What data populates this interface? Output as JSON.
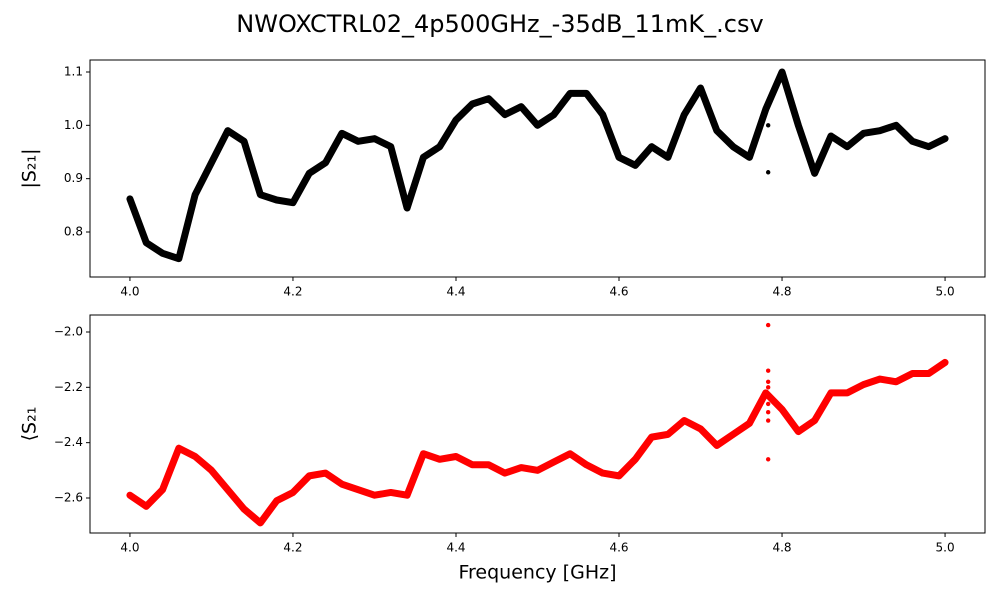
{
  "title": "NWOXCTRL02_4p500GHz_-35dB_11mK_.csv",
  "chart_data": [
    {
      "type": "scatter",
      "ylabel": "|S₂₁|",
      "xlim": [
        3.951,
        5.049
      ],
      "ylim": [
        0.7156,
        1.1225
      ],
      "xticks": [
        {
          "value": 4,
          "label": "4.0"
        },
        4.2,
        4.4,
        4.6,
        4.8,
        {
          "value": 5,
          "label": "5.0"
        }
      ],
      "yticks": [
        0.8,
        0.9,
        {
          "value": 1,
          "label": "1.0"
        },
        1.1
      ],
      "series": [
        {
          "color": "#000000",
          "mode": "line",
          "marker_size": 7,
          "x": [
            4.0,
            4.02,
            4.04,
            4.06,
            4.08,
            4.1,
            4.12,
            4.14,
            4.16,
            4.18,
            4.2,
            4.22,
            4.24,
            4.26,
            4.28,
            4.3,
            4.32,
            4.34,
            4.36,
            4.38,
            4.4,
            4.42,
            4.44,
            4.46,
            4.48,
            4.5,
            4.52,
            4.54,
            4.56,
            4.58,
            4.6,
            4.62,
            4.64,
            4.66,
            4.68,
            4.7,
            4.72,
            4.74,
            4.76,
            4.78,
            4.8,
            4.82,
            4.84,
            4.86,
            4.88,
            4.9,
            4.92,
            4.94,
            4.96,
            4.98,
            5.0
          ],
          "values": [
            0.862,
            0.78,
            0.76,
            0.75,
            0.87,
            0.93,
            0.99,
            0.97,
            0.87,
            0.86,
            0.855,
            0.91,
            0.93,
            0.985,
            0.97,
            0.975,
            0.96,
            0.845,
            0.94,
            0.96,
            1.01,
            1.04,
            1.05,
            1.02,
            1.035,
            1.0,
            1.02,
            1.06,
            1.06,
            1.02,
            0.94,
            0.925,
            0.96,
            0.94,
            1.02,
            1.07,
            0.99,
            0.96,
            0.94,
            1.03,
            1.1,
            1.0,
            0.91,
            0.98,
            0.96,
            0.985,
            0.99,
            1.0,
            0.97,
            0.96,
            0.975
          ]
        },
        {
          "color": "#000000",
          "mode": "markers",
          "marker_size": 2.2,
          "x": [
            4.783,
            4.783
          ],
          "values": [
            1.0,
            0.912
          ]
        }
      ]
    },
    {
      "type": "scatter",
      "ylabel": "⟨S₂₁",
      "xlabel": "Frequency [GHz]",
      "xlim": [
        3.951,
        5.049
      ],
      "ylim": [
        -2.7265,
        -1.9386
      ],
      "xticks": [
        {
          "value": 4,
          "label": "4.0"
        },
        4.2,
        4.4,
        4.6,
        4.8,
        {
          "value": 5,
          "label": "5.0"
        }
      ],
      "yticks": [
        {
          "value": -2.6,
          "label": "−2.6"
        },
        {
          "value": -2.4,
          "label": "−2.4"
        },
        {
          "value": -2.2,
          "label": "−2.2"
        },
        {
          "value": -2.0,
          "label": "−2.0"
        }
      ],
      "series": [
        {
          "color": "#ff0000",
          "mode": "line",
          "marker_size": 7,
          "x": [
            4.0,
            4.02,
            4.04,
            4.06,
            4.08,
            4.1,
            4.12,
            4.14,
            4.16,
            4.18,
            4.2,
            4.22,
            4.24,
            4.26,
            4.28,
            4.3,
            4.32,
            4.34,
            4.36,
            4.38,
            4.4,
            4.42,
            4.44,
            4.46,
            4.48,
            4.5,
            4.52,
            4.54,
            4.56,
            4.58,
            4.6,
            4.62,
            4.64,
            4.66,
            4.68,
            4.7,
            4.72,
            4.74,
            4.76,
            4.78,
            4.8,
            4.82,
            4.84,
            4.86,
            4.88,
            4.9,
            4.92,
            4.94,
            4.96,
            4.98,
            5.0
          ],
          "values": [
            -2.59,
            -2.63,
            -2.57,
            -2.42,
            -2.45,
            -2.5,
            -2.57,
            -2.64,
            -2.69,
            -2.61,
            -2.58,
            -2.52,
            -2.51,
            -2.55,
            -2.57,
            -2.59,
            -2.58,
            -2.59,
            -2.44,
            -2.46,
            -2.45,
            -2.48,
            -2.48,
            -2.51,
            -2.49,
            -2.5,
            -2.47,
            -2.44,
            -2.48,
            -2.51,
            -2.52,
            -2.46,
            -2.38,
            -2.37,
            -2.32,
            -2.35,
            -2.41,
            -2.37,
            -2.33,
            -2.22,
            -2.28,
            -2.36,
            -2.32,
            -2.22,
            -2.22,
            -2.19,
            -2.17,
            -2.18,
            -2.15,
            -2.15,
            -2.11
          ]
        },
        {
          "color": "#ff0000",
          "mode": "markers",
          "marker_size": 2.2,
          "x": [
            4.783,
            4.783,
            4.783,
            4.783,
            4.783,
            4.783,
            4.783,
            4.783
          ],
          "values": [
            -1.975,
            -2.14,
            -2.18,
            -2.2,
            -2.26,
            -2.29,
            -2.32,
            -2.46
          ]
        }
      ]
    }
  ]
}
